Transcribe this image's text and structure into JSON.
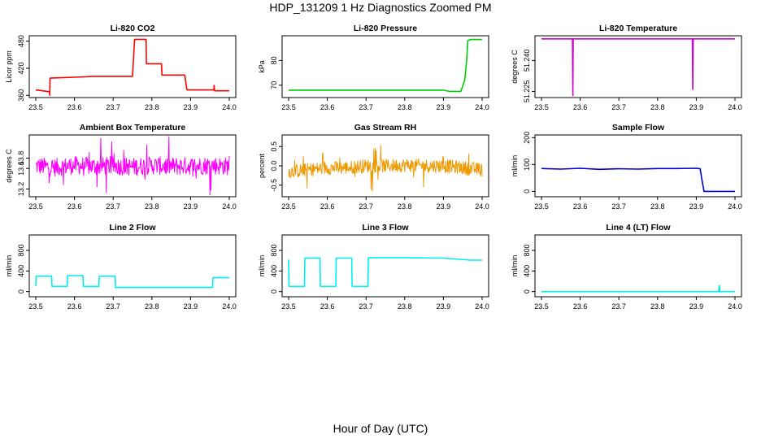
{
  "figure": {
    "title": "HDP_131209  1 Hz Diagnostics Zoomed PM",
    "xlabel": "Hour of Day (UTC)"
  },
  "chart_data": [
    {
      "type": "line",
      "title": "Li-820 CO2",
      "ylabel": "Licor ppm",
      "color": "#ff0000",
      "xlim": [
        23.5,
        24.0
      ],
      "xticks": [
        "23.5",
        "23.6",
        "23.7",
        "23.8",
        "23.9",
        "24.0"
      ],
      "ylim": [
        355,
        492
      ],
      "yticks": [
        "360",
        "420",
        "480"
      ],
      "series": [
        {
          "x": [
            23.5,
            23.535,
            23.536,
            23.537,
            23.6,
            23.65,
            23.75,
            23.755,
            23.756,
            23.78,
            23.785,
            23.786,
            23.82,
            23.825,
            23.826,
            23.885,
            23.89,
            23.891,
            23.96,
            23.961,
            23.962,
            24.0
          ],
          "y": [
            372,
            368,
            360,
            398,
            400,
            402,
            402,
            480,
            484,
            484,
            484,
            430,
            430,
            430,
            405,
            405,
            375,
            372,
            372,
            382,
            370,
            370
          ]
        }
      ]
    },
    {
      "type": "line",
      "title": "Li-820 Pressure",
      "ylabel": "kPa",
      "color": "#00cc00",
      "xlim": [
        23.5,
        24.0
      ],
      "xticks": [
        "23.5",
        "23.6",
        "23.7",
        "23.8",
        "23.9",
        "24.0"
      ],
      "ylim": [
        65,
        90
      ],
      "yticks": [
        "70",
        "80"
      ],
      "series": [
        {
          "x": [
            23.5,
            23.6,
            23.7,
            23.8,
            23.9,
            23.915,
            23.93,
            23.945,
            23.955,
            23.96,
            23.963,
            23.97,
            24.0
          ],
          "y": [
            68,
            68,
            68,
            68,
            68,
            67.5,
            67.5,
            67.5,
            72,
            80,
            88,
            88.5,
            88.5
          ]
        }
      ]
    },
    {
      "type": "line",
      "title": "Li-820 Temperature",
      "ylabel": "degrees C",
      "color": "#cc00cc",
      "xlim": [
        23.5,
        24.0
      ],
      "xticks": [
        "23.5",
        "23.6",
        "23.7",
        "23.8",
        "23.9",
        "24.0"
      ],
      "ylim": [
        51.222,
        51.252
      ],
      "yticks": [
        "51.225",
        "51.240"
      ],
      "series": [
        {
          "x": [
            23.5,
            23.58,
            23.581,
            23.582,
            23.89,
            23.891,
            23.892,
            24.0
          ],
          "y": [
            51.2505,
            51.2505,
            51.223,
            51.2505,
            51.2505,
            51.226,
            51.2505,
            51.2505
          ]
        }
      ]
    },
    {
      "type": "line",
      "title": "Ambient Box Temperature",
      "ylabel": "degrees C",
      "color": "#ff00ff",
      "xlim": [
        23.5,
        24.0
      ],
      "xticks": [
        "23.5",
        "23.6",
        "23.7",
        "23.8",
        "23.9",
        "24.0"
      ],
      "ylim": [
        13.05,
        14.25
      ],
      "yticks": [
        "13.2",
        "13.6",
        "13.8"
      ],
      "series": [
        {
          "x": [
            23.5,
            23.55,
            23.6,
            23.65,
            23.7,
            23.75,
            23.8,
            23.85,
            23.9,
            23.95,
            24.0
          ],
          "y": [
            13.65,
            13.62,
            13.66,
            13.64,
            13.65,
            13.63,
            13.66,
            13.64,
            13.65,
            13.66,
            13.64
          ],
          "noise": 0.32
        }
      ]
    },
    {
      "type": "line",
      "title": "Gas Stream RH",
      "ylabel": "percent",
      "color": "#ee9900",
      "xlim": [
        23.5,
        24.0
      ],
      "xticks": [
        "23.5",
        "23.6",
        "23.7",
        "23.8",
        "23.9",
        "24.0"
      ],
      "ylim": [
        -0.8,
        0.8
      ],
      "yticks": [
        "-0.5",
        "0.0",
        "0.5"
      ],
      "series": [
        {
          "x": [
            23.5,
            23.55,
            23.6,
            23.65,
            23.7,
            23.75,
            23.8,
            23.85,
            23.9,
            23.95,
            24.0
          ],
          "y": [
            -0.15,
            -0.1,
            -0.05,
            -0.05,
            0.0,
            0.0,
            0.02,
            0.0,
            0.0,
            -0.05,
            -0.1
          ],
          "noise": 0.32
        }
      ]
    },
    {
      "type": "line",
      "title": "Sample Flow",
      "ylabel": "ml/min",
      "color": "#0000cc",
      "xlim": [
        23.5,
        24.0
      ],
      "xticks": [
        "23.5",
        "23.6",
        "23.7",
        "23.8",
        "23.9",
        "24.0"
      ],
      "ylim": [
        -20,
        210
      ],
      "yticks": [
        "0",
        "100",
        "200"
      ],
      "series": [
        {
          "x": [
            23.5,
            23.55,
            23.6,
            23.65,
            23.7,
            23.75,
            23.8,
            23.85,
            23.9,
            23.91,
            23.915,
            23.92,
            23.95,
            24.0
          ],
          "y": [
            85,
            83,
            86,
            82,
            84,
            83,
            85,
            85,
            86,
            84,
            40,
            0,
            0,
            0
          ]
        }
      ]
    },
    {
      "type": "line",
      "title": "Line 2 Flow",
      "ylabel": "ml/min",
      "color": "#00eeee",
      "xlim": [
        23.5,
        24.0
      ],
      "xticks": [
        "23.5",
        "23.6",
        "23.7",
        "23.8",
        "23.9",
        "24.0"
      ],
      "ylim": [
        -100,
        1100
      ],
      "yticks": [
        "0",
        "400",
        "800"
      ],
      "series": [
        {
          "x": [
            23.5,
            23.501,
            23.541,
            23.542,
            23.581,
            23.582,
            23.622,
            23.623,
            23.663,
            23.664,
            23.705,
            23.706,
            23.95,
            23.957,
            23.958,
            24.0
          ],
          "y": [
            100,
            300,
            300,
            100,
            100,
            310,
            310,
            100,
            100,
            300,
            300,
            80,
            80,
            80,
            270,
            270
          ]
        }
      ]
    },
    {
      "type": "line",
      "title": "Line 3 Flow",
      "ylabel": "ml/min",
      "color": "#00eeee",
      "xlim": [
        23.5,
        24.0
      ],
      "xticks": [
        "23.5",
        "23.6",
        "23.7",
        "23.8",
        "23.9",
        "24.0"
      ],
      "ylim": [
        -100,
        1100
      ],
      "yticks": [
        "0",
        "400",
        "800"
      ],
      "series": [
        {
          "x": [
            23.5,
            23.501,
            23.502,
            23.541,
            23.542,
            23.581,
            23.582,
            23.622,
            23.623,
            23.663,
            23.664,
            23.705,
            23.706,
            23.8,
            23.9,
            23.97,
            24.0
          ],
          "y": [
            620,
            100,
            100,
            100,
            650,
            650,
            100,
            100,
            650,
            650,
            100,
            100,
            660,
            660,
            650,
            610,
            610
          ]
        }
      ]
    },
    {
      "type": "line",
      "title": "Line 4 (LT) Flow",
      "ylabel": "ml/min",
      "color": "#00eeee",
      "xlim": [
        23.5,
        24.0
      ],
      "xticks": [
        "23.5",
        "23.6",
        "23.7",
        "23.8",
        "23.9",
        "24.0"
      ],
      "ylim": [
        -100,
        1100
      ],
      "yticks": [
        "0",
        "400",
        "800"
      ],
      "series": [
        {
          "x": [
            23.5,
            23.958,
            23.959,
            23.96,
            23.961,
            24.0
          ],
          "y": [
            0,
            0,
            110,
            110,
            0,
            0
          ]
        }
      ]
    }
  ]
}
